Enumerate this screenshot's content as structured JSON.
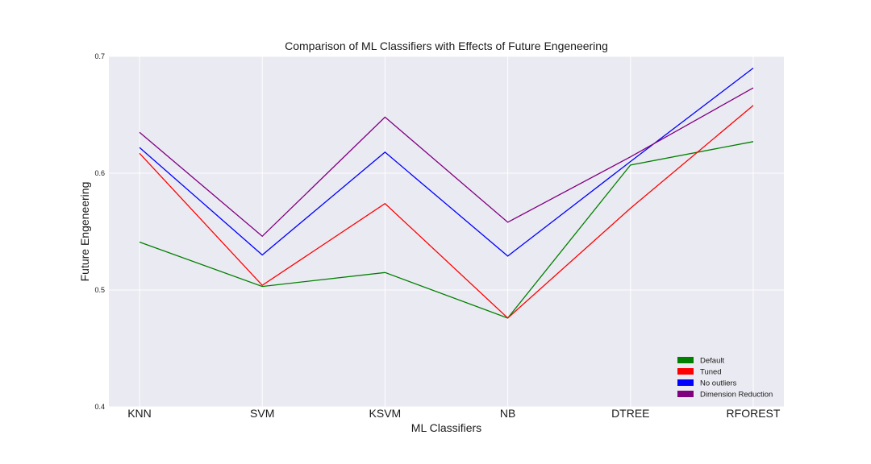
{
  "chart_data": {
    "type": "line",
    "title": "Comparison of ML Classifiers with Effects of Future Engeneering",
    "xlabel": "ML Classifiers",
    "ylabel": "Future Engeneering",
    "categories": [
      "KNN",
      "SVM",
      "KSVM",
      "NB",
      "DTREE",
      "RFOREST"
    ],
    "ylim": [
      0.4,
      0.7
    ],
    "yticks": [
      0.4,
      0.5,
      0.6,
      0.7
    ],
    "grid": true,
    "legend_position": "bottom-right",
    "series": [
      {
        "name": "Default",
        "color": "#008000",
        "values": [
          0.541,
          0.503,
          0.515,
          0.476,
          0.607,
          0.627
        ]
      },
      {
        "name": "Tuned",
        "color": "#ff0000",
        "values": [
          0.617,
          0.504,
          0.574,
          0.476,
          0.57,
          0.658
        ]
      },
      {
        "name": "No outliers",
        "color": "#0000ff",
        "values": [
          0.622,
          0.53,
          0.618,
          0.529,
          0.61,
          0.69
        ]
      },
      {
        "name": "Dimension Reduction",
        "color": "#800080",
        "values": [
          0.635,
          0.546,
          0.648,
          0.558,
          0.614,
          0.673
        ]
      }
    ]
  }
}
